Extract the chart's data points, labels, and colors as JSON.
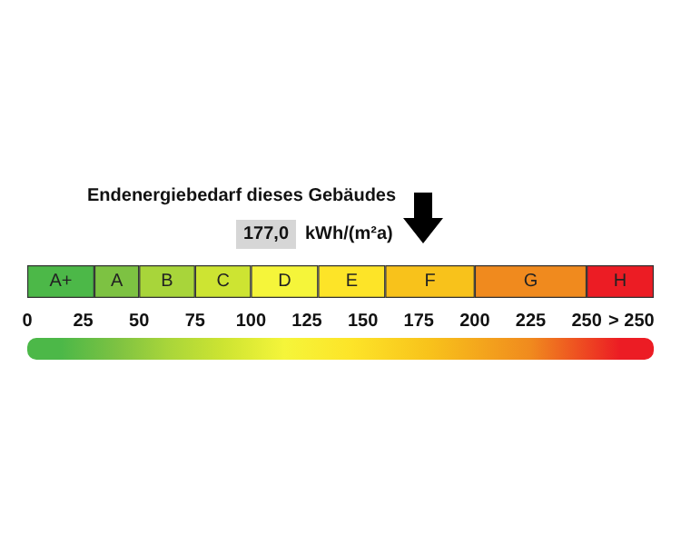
{
  "chart_data": {
    "type": "bar",
    "orientation": "horizontal",
    "stacked": true,
    "title": "Endenergiebedarf dieses Gebäudes",
    "xlabel": "kWh/(m²a)",
    "categories": [
      null
    ],
    "tick_labels": "x",
    "xlim": [
      0,
      280
    ],
    "xticks": [
      0,
      25,
      50,
      75,
      100,
      125,
      150,
      175,
      200,
      225,
      250,
      {
        "value": 270,
        "label": "> 250"
      }
    ],
    "series": [
      {
        "name": "A+",
        "color": "#4cb848",
        "values": [
          30
        ]
      },
      {
        "name": "A",
        "color": "#7dc242",
        "values": [
          20
        ]
      },
      {
        "name": "B",
        "color": "#a8d53a",
        "values": [
          25
        ]
      },
      {
        "name": "C",
        "color": "#cde432",
        "values": [
          25
        ]
      },
      {
        "name": "D",
        "color": "#f5f53a",
        "values": [
          30
        ]
      },
      {
        "name": "E",
        "color": "#fde428",
        "values": [
          30
        ]
      },
      {
        "name": "F",
        "color": "#f8c21b",
        "values": [
          40
        ]
      },
      {
        "name": "G",
        "color": "#f08a1e",
        "values": [
          50
        ]
      },
      {
        "name": "H",
        "color": "#ec1c24",
        "values": [
          30
        ]
      }
    ],
    "annotations": [
      "177,0"
    ]
  }
}
